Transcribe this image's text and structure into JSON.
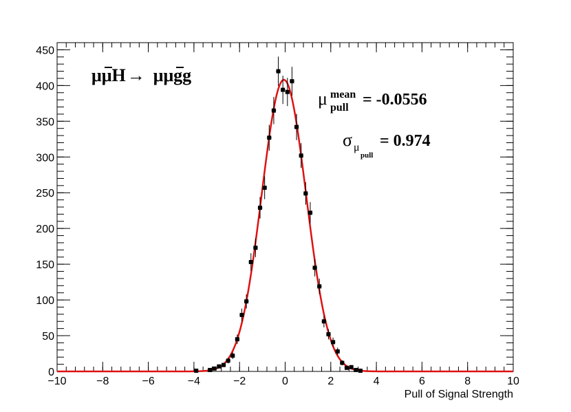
{
  "chart_data": {
    "type": "scatter",
    "xlabel": "Pull of Signal Strength",
    "ylabel": "",
    "xlim": [
      -10,
      10
    ],
    "ylim": [
      0,
      460
    ],
    "x_ticks": [
      -10,
      -8,
      -6,
      -4,
      -2,
      0,
      2,
      4,
      6,
      8,
      10
    ],
    "y_ticks": [
      0,
      50,
      100,
      150,
      200,
      250,
      300,
      350,
      400,
      450
    ],
    "x_tick_labels": [
      "−10",
      "−8",
      "−6",
      "−4",
      "−2",
      "0",
      "2",
      "4",
      "6",
      "8",
      "10"
    ],
    "y_tick_labels": [
      "0",
      "50",
      "100",
      "150",
      "200",
      "250",
      "300",
      "350",
      "400",
      "450"
    ],
    "grid": false,
    "process_label": {
      "lhs_particle": "μμH",
      "arrow": "→",
      "rhs_particle": "μμgg"
    },
    "stats": {
      "mean_symbol": "μ",
      "mean_superscript": "mean",
      "mean_subscript": "pull",
      "mean_value": "= -0.0556",
      "sigma_symbol": "σ",
      "sigma_sub": "μ",
      "sigma_subsub": "pull",
      "sigma_value": "= 0.974"
    },
    "series": [
      {
        "type": "points_with_errors",
        "color": "#000000",
        "x": [
          -3.9,
          -3.3,
          -3.1,
          -2.9,
          -2.7,
          -2.5,
          -2.3,
          -2.1,
          -1.9,
          -1.7,
          -1.5,
          -1.3,
          -1.1,
          -0.9,
          -0.7,
          -0.5,
          -0.3,
          -0.1,
          0.1,
          0.3,
          0.5,
          0.7,
          0.9,
          1.1,
          1.3,
          1.5,
          1.7,
          1.9,
          2.1,
          2.3,
          2.5,
          2.7,
          2.9,
          3.1,
          3.3
        ],
        "y": [
          1,
          2,
          4,
          7,
          9,
          15,
          22,
          45,
          79,
          98,
          153,
          173,
          229,
          257,
          327,
          365,
          420,
          394,
          391,
          406,
          342,
          302,
          249,
          222,
          145,
          119,
          70,
          52,
          41,
          28,
          12,
          5,
          6,
          2,
          1
        ]
      },
      {
        "type": "line",
        "name": "",
        "color": "#e01010",
        "model": "gaussian",
        "amplitude": 408,
        "mean": -0.0556,
        "sigma": 0.974
      }
    ]
  }
}
